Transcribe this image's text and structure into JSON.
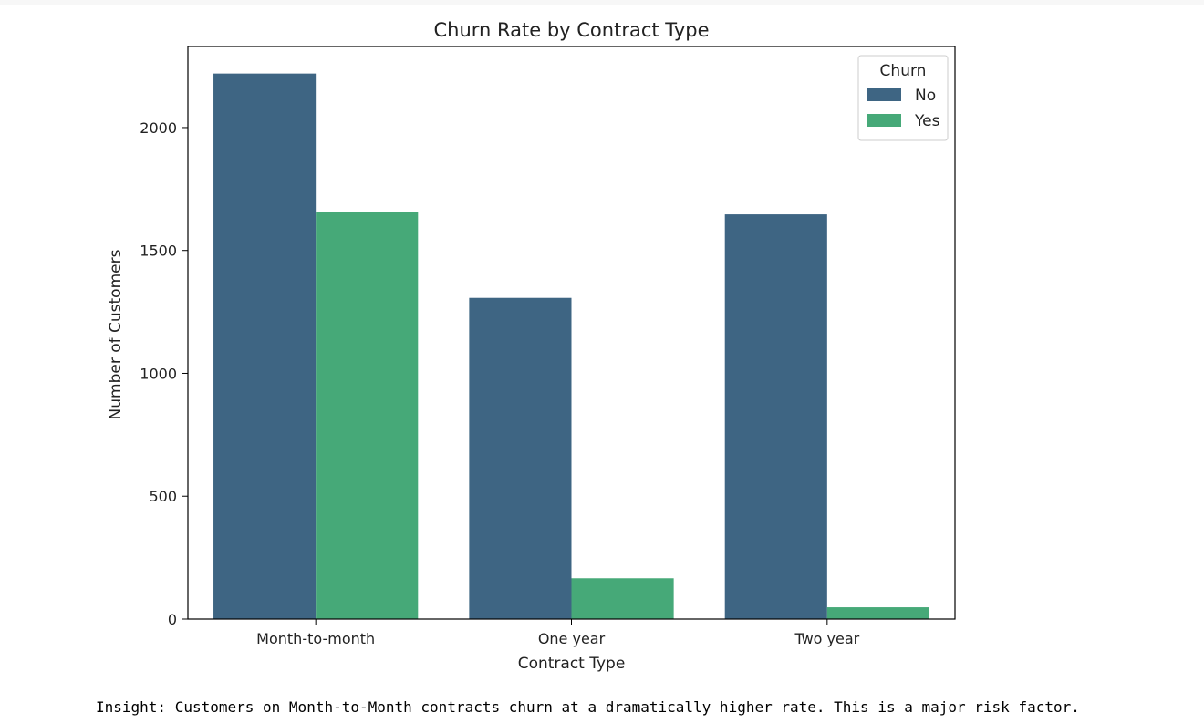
{
  "colors": {
    "no": "#3e6583",
    "yes": "#46a978",
    "axis": "#000000",
    "text": "#222222"
  },
  "chart_data": {
    "type": "bar",
    "title": "Churn Rate by Contract Type",
    "xlabel": "Contract Type",
    "ylabel": "Number of Customers",
    "categories": [
      "Month-to-month",
      "One year",
      "Two year"
    ],
    "series": [
      {
        "name": "No",
        "values": [
          2220,
          1307,
          1647
        ]
      },
      {
        "name": "Yes",
        "values": [
          1655,
          166,
          48
        ]
      }
    ],
    "ylim": [
      0,
      2330
    ],
    "yticks": [
      0,
      500,
      1000,
      1500,
      2000
    ],
    "grid": false,
    "legend": {
      "title": "Churn",
      "placement": "top-right"
    }
  },
  "insight": "Insight: Customers on Month-to-Month contracts churn at a dramatically higher rate. This is a major risk factor."
}
